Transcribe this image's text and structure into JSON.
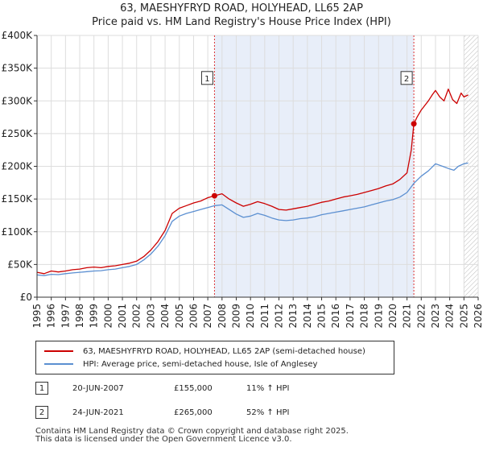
{
  "title": {
    "line1": "63, MAESHYFRYD ROAD, HOLYHEAD, LL65 2AP",
    "line2": "Price paid vs. HM Land Registry's House Price Index (HPI)"
  },
  "chart_data": {
    "type": "line",
    "xlim": [
      1995,
      2026
    ],
    "ylim": [
      0,
      400000
    ],
    "x_ticks": [
      "1995",
      "1996",
      "1997",
      "1998",
      "1999",
      "2000",
      "2001",
      "2002",
      "2003",
      "2004",
      "2005",
      "2006",
      "2007",
      "2008",
      "2009",
      "2010",
      "2011",
      "2012",
      "2013",
      "2014",
      "2015",
      "2016",
      "2017",
      "2018",
      "2019",
      "2020",
      "2021",
      "2022",
      "2023",
      "2024",
      "2025",
      "2026"
    ],
    "y_ticks": [
      {
        "value": 0,
        "label": "£0"
      },
      {
        "value": 50000,
        "label": "£50K"
      },
      {
        "value": 100000,
        "label": "£100K"
      },
      {
        "value": 150000,
        "label": "£150K"
      },
      {
        "value": 200000,
        "label": "£200K"
      },
      {
        "value": 250000,
        "label": "£250K"
      },
      {
        "value": 300000,
        "label": "£300K"
      },
      {
        "value": 350000,
        "label": "£350K"
      },
      {
        "value": 400000,
        "label": "£400K"
      }
    ],
    "grid": true,
    "shaded_period": [
      2007.47,
      2021.48
    ],
    "future_hatch_from": 2025.0,
    "series": [
      {
        "name": "63, MAESHYFRYD ROAD, HOLYHEAD, LL65 2AP (semi-detached house)",
        "color": "#cc0000",
        "points": [
          [
            1995.0,
            38000
          ],
          [
            1995.5,
            36000
          ],
          [
            1996.0,
            40000
          ],
          [
            1996.5,
            38500
          ],
          [
            1997.0,
            40000
          ],
          [
            1997.5,
            42000
          ],
          [
            1998.0,
            43000
          ],
          [
            1998.5,
            45000
          ],
          [
            1999.0,
            46000
          ],
          [
            1999.5,
            45000
          ],
          [
            2000.0,
            47000
          ],
          [
            2000.5,
            48000
          ],
          [
            2001.0,
            50000
          ],
          [
            2001.5,
            52000
          ],
          [
            2002.0,
            55000
          ],
          [
            2002.5,
            62000
          ],
          [
            2003.0,
            72000
          ],
          [
            2003.5,
            85000
          ],
          [
            2004.0,
            102000
          ],
          [
            2004.5,
            128000
          ],
          [
            2005.0,
            136000
          ],
          [
            2005.5,
            140000
          ],
          [
            2006.0,
            144000
          ],
          [
            2006.5,
            147000
          ],
          [
            2007.0,
            152000
          ],
          [
            2007.47,
            155000
          ],
          [
            2008.0,
            158000
          ],
          [
            2008.5,
            150000
          ],
          [
            2009.0,
            144000
          ],
          [
            2009.5,
            139000
          ],
          [
            2010.0,
            142000
          ],
          [
            2010.5,
            146000
          ],
          [
            2011.0,
            143000
          ],
          [
            2011.5,
            139000
          ],
          [
            2012.0,
            134000
          ],
          [
            2012.5,
            133000
          ],
          [
            2013.0,
            135000
          ],
          [
            2013.5,
            137000
          ],
          [
            2014.0,
            139000
          ],
          [
            2014.5,
            142000
          ],
          [
            2015.0,
            145000
          ],
          [
            2015.5,
            147000
          ],
          [
            2016.0,
            150000
          ],
          [
            2016.5,
            153000
          ],
          [
            2017.0,
            155000
          ],
          [
            2017.5,
            157000
          ],
          [
            2018.0,
            160000
          ],
          [
            2018.5,
            163000
          ],
          [
            2019.0,
            166000
          ],
          [
            2019.5,
            170000
          ],
          [
            2020.0,
            173000
          ],
          [
            2020.5,
            180000
          ],
          [
            2021.0,
            190000
          ],
          [
            2021.3,
            225000
          ],
          [
            2021.48,
            265000
          ],
          [
            2021.7,
            275000
          ],
          [
            2022.0,
            286000
          ],
          [
            2022.5,
            300000
          ],
          [
            2022.8,
            310000
          ],
          [
            2023.0,
            316000
          ],
          [
            2023.3,
            306000
          ],
          [
            2023.6,
            300000
          ],
          [
            2023.9,
            318000
          ],
          [
            2024.2,
            302000
          ],
          [
            2024.5,
            296000
          ],
          [
            2024.8,
            312000
          ],
          [
            2025.0,
            306000
          ],
          [
            2025.3,
            309000
          ]
        ]
      },
      {
        "name": "HPI: Average price, semi-detached house, Isle of Anglesey",
        "color": "#5b8fd1",
        "points": [
          [
            1995.0,
            34000
          ],
          [
            1995.5,
            33000
          ],
          [
            1996.0,
            35000
          ],
          [
            1996.5,
            34500
          ],
          [
            1997.0,
            36000
          ],
          [
            1997.5,
            37000
          ],
          [
            1998.0,
            38000
          ],
          [
            1998.5,
            39000
          ],
          [
            1999.0,
            40000
          ],
          [
            1999.5,
            40500
          ],
          [
            2000.0,
            42000
          ],
          [
            2000.5,
            43000
          ],
          [
            2001.0,
            45000
          ],
          [
            2001.5,
            47000
          ],
          [
            2002.0,
            50000
          ],
          [
            2002.5,
            57000
          ],
          [
            2003.0,
            66000
          ],
          [
            2003.5,
            78000
          ],
          [
            2004.0,
            94000
          ],
          [
            2004.5,
            116000
          ],
          [
            2005.0,
            124000
          ],
          [
            2005.5,
            128000
          ],
          [
            2006.0,
            131000
          ],
          [
            2006.5,
            134000
          ],
          [
            2007.0,
            137000
          ],
          [
            2007.5,
            140000
          ],
          [
            2008.0,
            141000
          ],
          [
            2008.5,
            134000
          ],
          [
            2009.0,
            127000
          ],
          [
            2009.5,
            122000
          ],
          [
            2010.0,
            124000
          ],
          [
            2010.5,
            128000
          ],
          [
            2011.0,
            125000
          ],
          [
            2011.5,
            121000
          ],
          [
            2012.0,
            118000
          ],
          [
            2012.5,
            117000
          ],
          [
            2013.0,
            118000
          ],
          [
            2013.5,
            120000
          ],
          [
            2014.0,
            121000
          ],
          [
            2014.5,
            123000
          ],
          [
            2015.0,
            126000
          ],
          [
            2015.5,
            128000
          ],
          [
            2016.0,
            130000
          ],
          [
            2016.5,
            132000
          ],
          [
            2017.0,
            134000
          ],
          [
            2017.5,
            136000
          ],
          [
            2018.0,
            138000
          ],
          [
            2018.5,
            141000
          ],
          [
            2019.0,
            144000
          ],
          [
            2019.5,
            147000
          ],
          [
            2020.0,
            149000
          ],
          [
            2020.5,
            153000
          ],
          [
            2021.0,
            160000
          ],
          [
            2021.48,
            174000
          ],
          [
            2022.0,
            185000
          ],
          [
            2022.5,
            193000
          ],
          [
            2023.0,
            204000
          ],
          [
            2023.5,
            200000
          ],
          [
            2024.0,
            196000
          ],
          [
            2024.3,
            194000
          ],
          [
            2024.6,
            200000
          ],
          [
            2025.0,
            204000
          ],
          [
            2025.3,
            205000
          ]
        ]
      }
    ],
    "markers": [
      {
        "label": "1",
        "x": 2007.47,
        "y": 155000,
        "label_y": 335000
      },
      {
        "label": "2",
        "x": 2021.48,
        "y": 265000,
        "label_y": 335000
      }
    ]
  },
  "legend": {
    "items": [
      {
        "label": "63, MAESHYFRYD ROAD, HOLYHEAD, LL65 2AP (semi-detached house)",
        "color": "#cc0000"
      },
      {
        "label": "HPI: Average price, semi-detached house, Isle of Anglesey",
        "color": "#5b8fd1"
      }
    ]
  },
  "transactions": [
    {
      "num": "1",
      "date": "20-JUN-2007",
      "price": "£155,000",
      "hpi": "11% ↑ HPI"
    },
    {
      "num": "2",
      "date": "24-JUN-2021",
      "price": "£265,000",
      "hpi": "52% ↑ HPI"
    }
  ],
  "footer": {
    "line1": "Contains HM Land Registry data © Crown copyright and database right 2025.",
    "line2": "This data is licensed under the Open Government Licence v3.0."
  }
}
